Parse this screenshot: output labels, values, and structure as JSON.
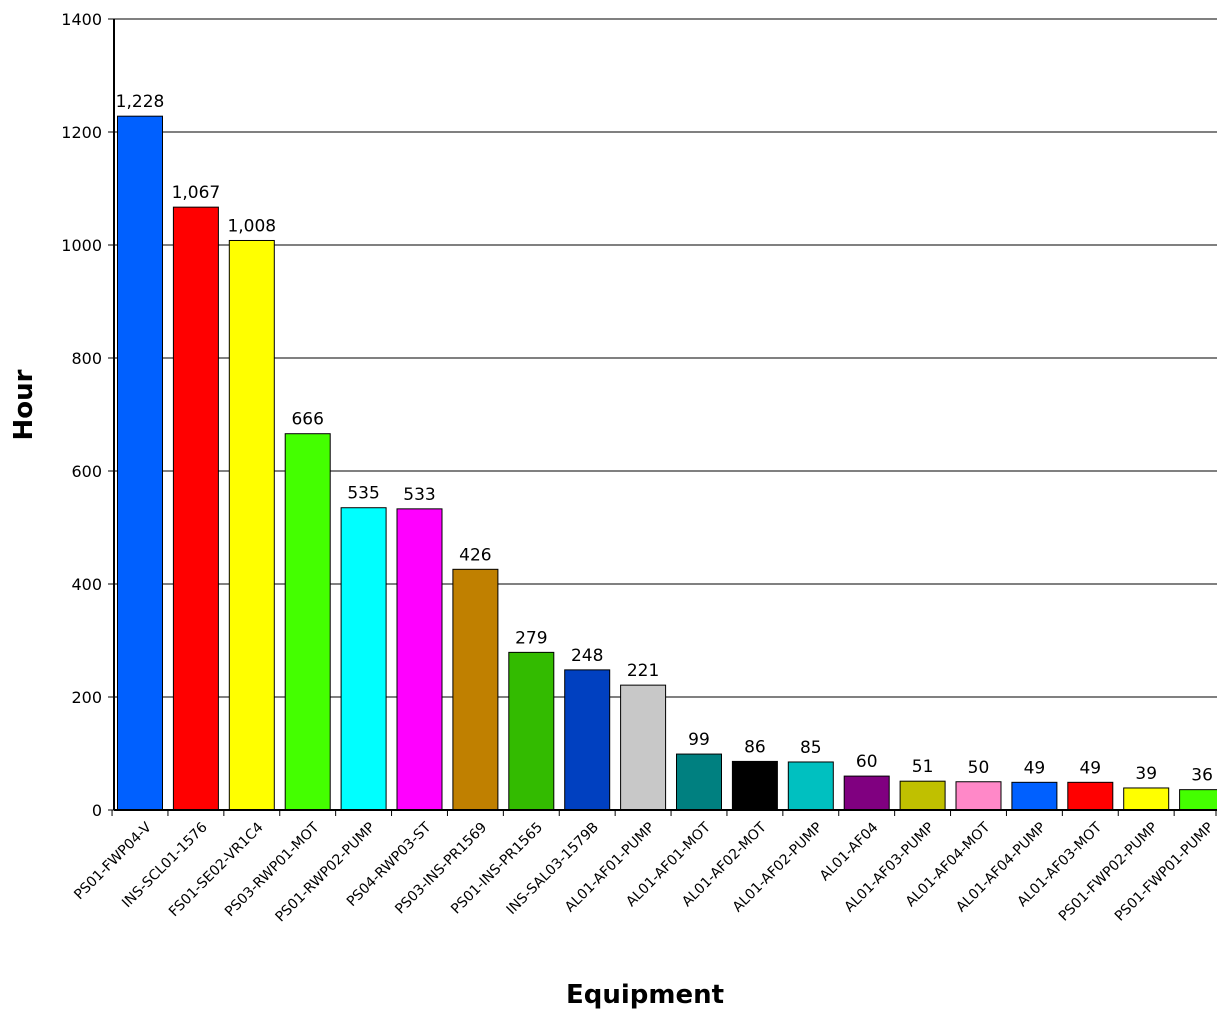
{
  "chart_data": {
    "type": "bar",
    "xlabel": "Equipment",
    "ylabel": "Hour",
    "ylim": [
      0,
      1400
    ],
    "yticks": [
      0,
      200,
      400,
      600,
      800,
      1000,
      1200,
      1400
    ],
    "grid": true,
    "categories": [
      "PS01-FWP04-V",
      "INS-SCL01-1576",
      "FS01-SE02-VR1C4",
      "PS03-RWP01-MOT",
      "PS01-RWP02-PUMP",
      "PS04-RWP03-ST",
      "PS03-INS-PR1569",
      "PS01-INS-PR1565",
      "INS-SAL03-1579B",
      "AL01-AF01-PUMP",
      "AL01-AF01-MOT",
      "AL01-AF02-MOT",
      "AL01-AF02-PUMP",
      "AL01-AF04",
      "AL01-AF03-PUMP",
      "AL01-AF04-MOT",
      "AL01-AF04-PUMP",
      "AL01-AF03-MOT",
      "PS01-FWP02-PUMP",
      "PS01-FWP01-PUMP"
    ],
    "values": [
      1228,
      1067,
      1008,
      666,
      535,
      533,
      426,
      279,
      248,
      221,
      99,
      86,
      85,
      60,
      51,
      50,
      49,
      49,
      39,
      36
    ],
    "value_labels": [
      "1,228",
      "1,067",
      "1,008",
      "666",
      "535",
      "533",
      "426",
      "279",
      "248",
      "221",
      "99",
      "86",
      "85",
      "60",
      "51",
      "50",
      "49",
      "49",
      "39",
      "36"
    ],
    "colors": [
      "#0060ff",
      "#ff0000",
      "#ffff00",
      "#44ff00",
      "#00ffff",
      "#ff00ff",
      "#c08000",
      "#33bb00",
      "#0040c0",
      "#c8c8c8",
      "#008080",
      "#000000",
      "#00c0c0",
      "#800080",
      "#c0c000",
      "#ff88c8",
      "#0060ff",
      "#ff0000",
      "#ffff00",
      "#44ff00"
    ]
  }
}
